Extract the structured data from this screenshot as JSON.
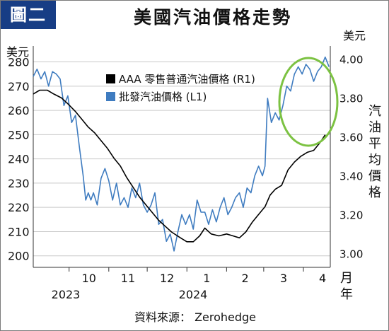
{
  "badge": "圖二",
  "title": "美國汽油價格走勢",
  "source_prefix": "資料來源：",
  "source_name": "Zerohedge",
  "colors": {
    "badge": "#173d85",
    "retail": "#000000",
    "wholesale": "#3f7cc0",
    "highlight": "#7cc242",
    "grid": "#c9c9c9"
  },
  "chart_data": {
    "type": "line",
    "left_axis": {
      "unit": "美元",
      "ticks": [
        200,
        210,
        220,
        230,
        240,
        250,
        260,
        270,
        280
      ],
      "range": [
        197,
        286
      ]
    },
    "right_axis": {
      "unit": "美元",
      "label": "汽油平均價格",
      "ticks": [
        "3.00",
        "3.20",
        "3.40",
        "3.60",
        "3.80",
        "4.00"
      ],
      "range": [
        2.95,
        4.06
      ]
    },
    "x_axis": {
      "unit_label": [
        "月",
        "年"
      ],
      "month_ticks": [
        "10",
        "11",
        "12",
        "1",
        "2",
        "3",
        "4"
      ],
      "year_labels": [
        "2023",
        "2024"
      ],
      "range": [
        "2023-09-03",
        "2024-04-22"
      ]
    },
    "series": [
      {
        "name": "AAA 零售普通汽油價格 (R1)",
        "axis": "right",
        "points": [
          [
            "2023-09-03",
            3.82
          ],
          [
            "2023-09-08",
            3.84
          ],
          [
            "2023-09-14",
            3.84
          ],
          [
            "2023-09-19",
            3.82
          ],
          [
            "2023-09-25",
            3.8
          ],
          [
            "2023-09-30",
            3.77
          ],
          [
            "2023-10-06",
            3.73
          ],
          [
            "2023-10-11",
            3.69
          ],
          [
            "2023-10-16",
            3.65
          ],
          [
            "2023-10-21",
            3.62
          ],
          [
            "2023-10-26",
            3.58
          ],
          [
            "2023-10-31",
            3.54
          ],
          [
            "2023-11-05",
            3.49
          ],
          [
            "2023-11-10",
            3.45
          ],
          [
            "2023-11-15",
            3.39
          ],
          [
            "2023-11-20",
            3.34
          ],
          [
            "2023-11-25",
            3.29
          ],
          [
            "2023-11-30",
            3.25
          ],
          [
            "2023-12-05",
            3.21
          ],
          [
            "2023-12-10",
            3.17
          ],
          [
            "2023-12-15",
            3.14
          ],
          [
            "2023-12-20",
            3.11
          ],
          [
            "2023-12-27",
            3.08
          ],
          [
            "2024-01-01",
            3.06
          ],
          [
            "2024-01-06",
            3.06
          ],
          [
            "2024-01-11",
            3.09
          ],
          [
            "2024-01-15",
            3.13
          ],
          [
            "2024-01-20",
            3.1
          ],
          [
            "2024-01-26",
            3.09
          ],
          [
            "2024-02-01",
            3.1
          ],
          [
            "2024-02-06",
            3.09
          ],
          [
            "2024-02-11",
            3.08
          ],
          [
            "2024-02-16",
            3.11
          ],
          [
            "2024-02-21",
            3.16
          ],
          [
            "2024-02-26",
            3.2
          ],
          [
            "2024-03-02",
            3.24
          ],
          [
            "2024-03-06",
            3.3
          ],
          [
            "2024-03-10",
            3.33
          ],
          [
            "2024-03-15",
            3.35
          ],
          [
            "2024-03-20",
            3.43
          ],
          [
            "2024-03-25",
            3.47
          ],
          [
            "2024-03-30",
            3.5
          ],
          [
            "2024-04-04",
            3.52
          ],
          [
            "2024-04-09",
            3.53
          ],
          [
            "2024-04-14",
            3.57
          ],
          [
            "2024-04-18",
            3.61
          ]
        ]
      },
      {
        "name": "批發汽油價格 (L1)",
        "axis": "left",
        "points": [
          [
            "2023-09-03",
            274
          ],
          [
            "2023-09-06",
            277
          ],
          [
            "2023-09-09",
            273
          ],
          [
            "2023-09-12",
            276
          ],
          [
            "2023-09-15",
            270
          ],
          [
            "2023-09-18",
            276
          ],
          [
            "2023-09-21",
            275
          ],
          [
            "2023-09-24",
            273
          ],
          [
            "2023-09-27",
            262
          ],
          [
            "2023-09-30",
            266
          ],
          [
            "2023-10-03",
            255
          ],
          [
            "2023-10-06",
            258
          ],
          [
            "2023-10-09",
            245
          ],
          [
            "2023-10-12",
            233
          ],
          [
            "2023-10-14",
            223
          ],
          [
            "2023-10-16",
            226
          ],
          [
            "2023-10-18",
            223
          ],
          [
            "2023-10-20",
            226
          ],
          [
            "2023-10-23",
            221
          ],
          [
            "2023-10-26",
            232
          ],
          [
            "2023-10-29",
            236
          ],
          [
            "2023-11-01",
            231
          ],
          [
            "2023-11-04",
            223
          ],
          [
            "2023-11-07",
            230
          ],
          [
            "2023-11-10",
            221
          ],
          [
            "2023-11-13",
            224
          ],
          [
            "2023-11-16",
            220
          ],
          [
            "2023-11-19",
            228
          ],
          [
            "2023-11-22",
            224
          ],
          [
            "2023-11-25",
            230
          ],
          [
            "2023-11-28",
            221
          ],
          [
            "2023-12-01",
            218
          ],
          [
            "2023-12-04",
            221
          ],
          [
            "2023-12-07",
            226
          ],
          [
            "2023-12-10",
            213
          ],
          [
            "2023-12-13",
            215
          ],
          [
            "2023-12-16",
            206
          ],
          [
            "2023-12-19",
            209
          ],
          [
            "2023-12-22",
            202
          ],
          [
            "2023-12-25",
            210
          ],
          [
            "2023-12-28",
            217
          ],
          [
            "2023-12-31",
            213
          ],
          [
            "2024-01-03",
            217
          ],
          [
            "2024-01-06",
            211
          ],
          [
            "2024-01-09",
            223
          ],
          [
            "2024-01-12",
            218
          ],
          [
            "2024-01-15",
            218
          ],
          [
            "2024-01-18",
            213
          ],
          [
            "2024-01-21",
            219
          ],
          [
            "2024-01-24",
            214
          ],
          [
            "2024-01-27",
            220
          ],
          [
            "2024-01-30",
            224
          ],
          [
            "2024-02-02",
            217
          ],
          [
            "2024-02-05",
            220
          ],
          [
            "2024-02-08",
            224
          ],
          [
            "2024-02-11",
            226
          ],
          [
            "2024-02-14",
            220
          ],
          [
            "2024-02-17",
            228
          ],
          [
            "2024-02-20",
            226
          ],
          [
            "2024-02-23",
            233
          ],
          [
            "2024-02-26",
            237
          ],
          [
            "2024-02-29",
            233
          ],
          [
            "2024-03-02",
            237
          ],
          [
            "2024-03-04",
            265
          ],
          [
            "2024-03-07",
            255
          ],
          [
            "2024-03-10",
            259
          ],
          [
            "2024-03-13",
            256
          ],
          [
            "2024-03-16",
            262
          ],
          [
            "2024-03-19",
            270
          ],
          [
            "2024-03-22",
            268
          ],
          [
            "2024-03-25",
            275
          ],
          [
            "2024-03-28",
            278
          ],
          [
            "2024-03-31",
            275
          ],
          [
            "2024-04-03",
            279
          ],
          [
            "2024-04-06",
            277
          ],
          [
            "2024-04-09",
            272
          ],
          [
            "2024-04-12",
            276
          ],
          [
            "2024-04-15",
            278
          ],
          [
            "2024-04-18",
            282
          ],
          [
            "2024-04-21",
            278
          ]
        ]
      }
    ],
    "annotation": "circle"
  }
}
